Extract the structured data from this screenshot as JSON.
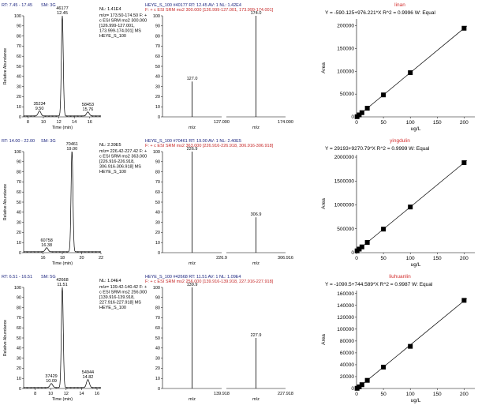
{
  "chart_data": [
    {
      "type": "line",
      "kind": "chromatogram",
      "header": {
        "rt": "RT: 7.45 - 17.45",
        "sm": "SM: 3G",
        "nl": "NL: 1.41E4",
        "filter": [
          "m/z= 173.50-174.50 F: +",
          "c ESI SRM ms2 300.000",
          "[126.999-127.001,",
          "173.999-174.001] MS",
          "HEYE_S_100"
        ]
      },
      "ylabel": "Relative Abundance",
      "xlabel": "Time (min)",
      "xlim": [
        7.45,
        17.45
      ],
      "ylim": [
        0,
        100
      ],
      "xticks": [
        8,
        10,
        12,
        14,
        16
      ],
      "yticks": [
        0,
        10,
        20,
        30,
        40,
        50,
        60,
        70,
        80,
        90,
        100
      ],
      "peaks": [
        {
          "rt": 9.5,
          "height": 5,
          "area": "35234",
          "label_rt": "9.50"
        },
        {
          "rt": 12.45,
          "height": 100,
          "area": "46177",
          "label_rt": "12.45"
        },
        {
          "rt": 15.76,
          "height": 4,
          "area": "58453",
          "label_rt": "15.76"
        }
      ]
    },
    {
      "type": "bar",
      "kind": "spectrum",
      "header": {
        "line1": "HEYE_S_100 #40177  RT: 12.45  AV: 1  NL: 1.42E4",
        "line2": "F: + c ESI SRM ms2 300.000 [126.999-127.001, 173.999-174.001]"
      },
      "xlabel": "m/z",
      "break_labels": [
        "127.000",
        "174.000"
      ],
      "ylim": [
        0,
        100
      ],
      "yticks": [
        0,
        10,
        20,
        30,
        40,
        50,
        60,
        70,
        80,
        90,
        100
      ],
      "segments": [
        {
          "pos": 0.5,
          "value": 35,
          "label": "127.0"
        },
        {
          "pos": 0.5,
          "value": 100,
          "label": "174.0"
        }
      ]
    },
    {
      "type": "scatter",
      "kind": "calibration",
      "title": "linan",
      "equation": "Y = -590.125+976.221*X    R^2 = 0.9996    W: Equal",
      "xlabel": "ug/L",
      "ylabel": "Area",
      "xlim": [
        0,
        220
      ],
      "ylim": [
        0,
        215000
      ],
      "xticks": [
        0,
        50,
        100,
        150,
        200
      ],
      "yticks": [
        0,
        50000,
        100000,
        150000,
        200000
      ],
      "intercept": -590.125,
      "slope": 976.221,
      "x": [
        1,
        5,
        10,
        20,
        50,
        100,
        200
      ],
      "y": [
        400,
        4300,
        9200,
        19000,
        48200,
        97000,
        194600
      ]
    },
    {
      "type": "line",
      "kind": "chromatogram",
      "header": {
        "rt": "RT: 14.00 - 22.00",
        "sm": "SM: 3G",
        "nl": "NL: 2.39E5",
        "filter": [
          "m/z= 226.42-227.42 F: +",
          "c ESI SRM ms2 363.000",
          "[226.916-226.918,",
          "306.916-306.918] MS",
          "HEYE_S_100"
        ]
      },
      "ylabel": "Relative Abundance",
      "xlabel": "Time (min)",
      "xlim": [
        14,
        22
      ],
      "ylim": [
        0,
        100
      ],
      "xticks": [
        16,
        18,
        20,
        22
      ],
      "yticks": [
        0,
        10,
        20,
        30,
        40,
        50,
        60,
        70,
        80,
        90,
        100
      ],
      "peaks": [
        {
          "rt": 16.38,
          "height": 4,
          "area": "60758",
          "label_rt": "16.38"
        },
        {
          "rt": 19.0,
          "height": 100,
          "area": "70461",
          "label_rt": "19.00"
        }
      ]
    },
    {
      "type": "bar",
      "kind": "spectrum",
      "header": {
        "line1": "HEYE_S_100 #70461  RT: 19.00  AV: 1  NL: 2.40E5",
        "line2": "F: + c ESI SRM ms2 363.000 [226.916-226.918, 306.916-306.918]"
      },
      "xlabel": "m/z",
      "break_labels": [
        "226.9",
        "306.916"
      ],
      "ylim": [
        0,
        100
      ],
      "yticks": [
        0,
        10,
        20,
        30,
        40,
        50,
        60,
        70,
        80,
        90,
        100
      ],
      "segments": [
        {
          "pos": 0.5,
          "value": 100,
          "label": "226.9"
        },
        {
          "pos": 0.5,
          "value": 35,
          "label": "306.9"
        }
      ]
    },
    {
      "type": "scatter",
      "kind": "calibration",
      "title": "yingdulin",
      "equation": "Y = 29193+9270.79*X    R^2 = 0.9999    W: Equal",
      "xlabel": "ug/L",
      "ylabel": "Area",
      "xlim": [
        0,
        220
      ],
      "ylim": [
        0,
        2050000
      ],
      "xticks": [
        0,
        50,
        100,
        150,
        200
      ],
      "yticks": [
        0,
        500000,
        1000000,
        1500000,
        2000000
      ],
      "intercept": 29193,
      "slope": 9270.79,
      "x": [
        1,
        5,
        10,
        20,
        50,
        100,
        200
      ],
      "y": [
        38000,
        75000,
        121000,
        214000,
        493000,
        956000,
        1884000
      ]
    },
    {
      "type": "line",
      "kind": "chromatogram",
      "header": {
        "rt": "RT: 6.51 - 16.51",
        "sm": "SM: 5G",
        "nl": "NL: 1.04E4",
        "filter": [
          "m/z= 139.42-140.42 F: +",
          "c ESI SRM ms2 256.000",
          "[139.916-139.918,",
          "227.916-227.918] MS",
          "HEYE_S_100"
        ]
      },
      "ylabel": "Relative Abundance",
      "xlabel": "Time (min)",
      "xlim": [
        6.51,
        16.51
      ],
      "ylim": [
        0,
        100
      ],
      "xticks": [
        8,
        10,
        12,
        14,
        16
      ],
      "yticks": [
        0,
        10,
        20,
        30,
        40,
        50,
        60,
        70,
        80,
        90,
        100
      ],
      "peaks": [
        {
          "rt": 10.09,
          "height": 4,
          "area": "37429",
          "label_rt": "10.09"
        },
        {
          "rt": 11.51,
          "height": 100,
          "area": "42668",
          "label_rt": "11.51"
        },
        {
          "rt": 14.82,
          "height": 8,
          "area": "54944",
          "label_rt": "14.82"
        }
      ]
    },
    {
      "type": "bar",
      "kind": "spectrum",
      "header": {
        "line1": "HEYE_S_100 #42668  RT: 11.51  AV: 1  NL: 1.09E4",
        "line2": "F: + c ESI SRM ms2 256.000 [139.916-139.918, 227.916-227.918]"
      },
      "xlabel": "m/z",
      "break_labels": [
        "139.918",
        "227.918"
      ],
      "ylim": [
        0,
        100
      ],
      "yticks": [
        0,
        10,
        20,
        30,
        40,
        50,
        60,
        70,
        80,
        90,
        100
      ],
      "segments": [
        {
          "pos": 0.5,
          "value": 100,
          "label": "139.9"
        },
        {
          "pos": 0.5,
          "value": 50,
          "label": "227.9"
        }
      ]
    },
    {
      "type": "scatter",
      "kind": "calibration",
      "title": "liuhuanlin",
      "equation": "Y = -1090.5+744.589*X    R^2 = 0.9987    W: Equal",
      "xlabel": "ug/L",
      "ylabel": "Area",
      "xlim": [
        0,
        220
      ],
      "ylim": [
        0,
        165000
      ],
      "xticks": [
        0,
        50,
        100,
        150,
        200
      ],
      "yticks": [
        0,
        20000,
        40000,
        60000,
        80000,
        100000,
        120000,
        140000,
        160000
      ],
      "intercept": -1090.5,
      "slope": 744.589,
      "x": [
        1,
        5,
        10,
        20,
        50,
        100,
        200
      ],
      "y": [
        300,
        2700,
        6400,
        13700,
        36000,
        71000,
        148500
      ]
    }
  ],
  "colors": {
    "header_rt": "#1a237e",
    "header_filter_red": "#c62828",
    "title_red": "#d32f2f",
    "trace": "#000000",
    "marker": "#000000"
  }
}
